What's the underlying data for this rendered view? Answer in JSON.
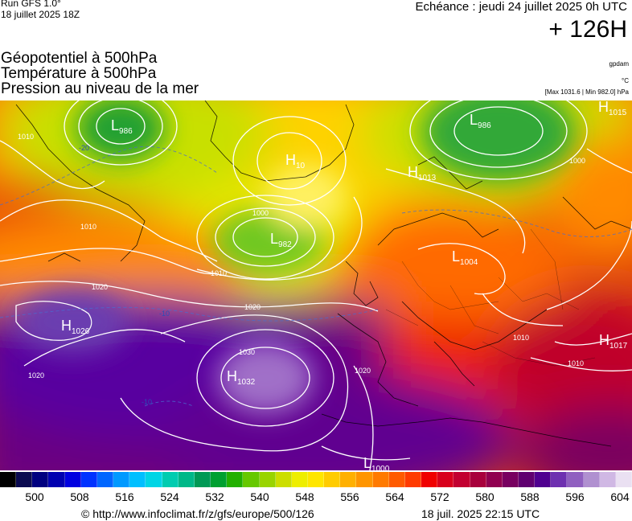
{
  "header": {
    "run": "Run GFS 1.0°",
    "run_date": "18 juillet 2025 18Z",
    "valid": "Echéance : jeudi 24 juillet 2025 0h UTC",
    "lead": "+ 126H"
  },
  "titles": {
    "line1": "Géopotentiel à 500hPa",
    "line2": "Température à 500hPa",
    "line3": "Pression au niveau de la mer"
  },
  "units": {
    "geo": "gpdam",
    "temp": "°C",
    "pressure_range": "[Max 1031.6 | Min 982.0] hPa"
  },
  "map": {
    "pressure_centers": [
      {
        "type": "L",
        "value": "986"
      },
      {
        "type": "L",
        "value": "986"
      },
      {
        "type": "H",
        "value": "1015"
      },
      {
        "type": "H",
        "value": "10"
      },
      {
        "type": "H",
        "value": "1013"
      },
      {
        "type": "L",
        "value": "982"
      },
      {
        "type": "L",
        "value": "1004"
      },
      {
        "type": "H",
        "value": "1026"
      },
      {
        "type": "H",
        "value": "1032"
      },
      {
        "type": "H",
        "value": "1017"
      },
      {
        "type": "L",
        "value": "1000"
      }
    ],
    "isobar_labels": [
      "1010",
      "1010",
      "1020",
      "1020",
      "1020",
      "1030",
      "1000",
      "1010",
      "1010",
      "1000",
      "1010",
      "1020"
    ],
    "temp_labels": [
      "-20",
      "-10",
      "-10"
    ]
  },
  "legend": {
    "colors": [
      "#000000",
      "#0a0a50",
      "#000080",
      "#0000b0",
      "#0000e0",
      "#0032ff",
      "#0066ff",
      "#0099ff",
      "#00bfff",
      "#00d5e5",
      "#00ccb0",
      "#00b888",
      "#009955",
      "#00a030",
      "#22b000",
      "#66c800",
      "#99d400",
      "#ccde00",
      "#eeee00",
      "#ffe600",
      "#ffcc00",
      "#ffb000",
      "#ff9500",
      "#ff7a00",
      "#ff5a00",
      "#ff3a00",
      "#f00000",
      "#d8001c",
      "#c20030",
      "#a8003c",
      "#900050",
      "#780060",
      "#600070",
      "#500090",
      "#6e30b0",
      "#9060c0",
      "#b090d0",
      "#d0b8e4",
      "#eae0f2"
    ],
    "ticks": [
      "500",
      "508",
      "516",
      "524",
      "532",
      "540",
      "548",
      "556",
      "564",
      "572",
      "580",
      "588",
      "596",
      "604"
    ]
  },
  "footer": {
    "url": "© http://www.infoclimat.fr/z/gfs/europe/500/126",
    "timestamp": "18 juil. 2025 22:15 UTC"
  }
}
